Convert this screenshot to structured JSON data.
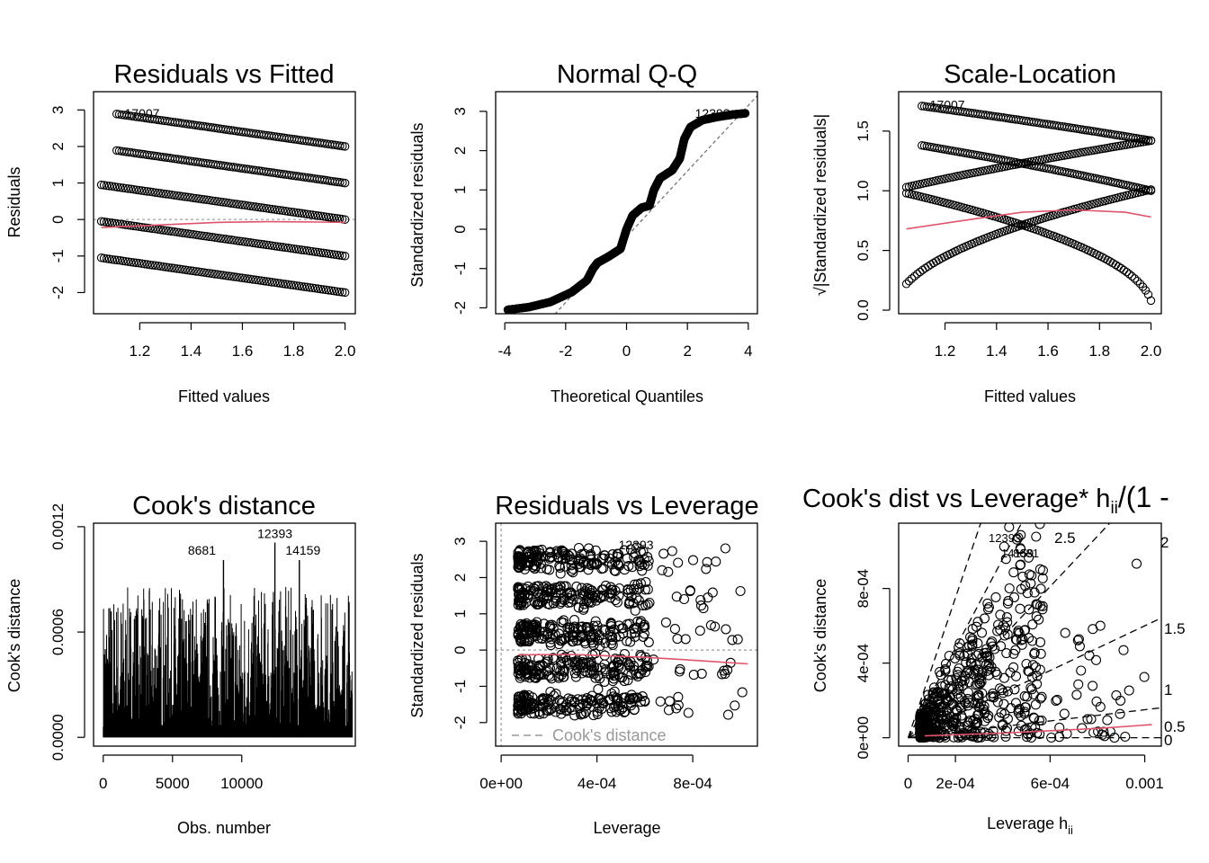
{
  "chart_data": [
    {
      "id": "p1",
      "type": "scatter",
      "title": "Residuals vs Fitted",
      "xlabel": "Fitted values",
      "ylabel": "Residuals",
      "xlim": [
        1.02,
        2.04
      ],
      "ylim": [
        -2.58,
        3.5
      ],
      "xticks": [
        1.2,
        1.4,
        1.6,
        1.8,
        2.0
      ],
      "xtick_labels": [
        "1.2",
        "1.4",
        "1.6",
        "1.8",
        "2.0"
      ],
      "yticks": [
        -2,
        -1,
        0,
        1,
        2,
        3
      ],
      "ytick_labels": [
        "-2",
        "-1",
        "0",
        "1",
        "2",
        "3"
      ],
      "point_bands": [
        {
          "x0": 1.05,
          "y0": -1.05,
          "x1": 2.0,
          "y1": -2.0
        },
        {
          "x0": 1.05,
          "y0": -0.05,
          "x1": 2.0,
          "y1": -1.0
        },
        {
          "x0": 1.05,
          "y0": 0.95,
          "x1": 2.0,
          "y1": 0.0
        },
        {
          "x0": 1.11,
          "y0": 1.89,
          "x1": 2.0,
          "y1": 1.0
        },
        {
          "x0": 1.11,
          "y0": 2.89,
          "x1": 2.0,
          "y1": 2.0
        }
      ],
      "smoother": {
        "x": [
          1.05,
          1.3,
          1.5,
          1.7,
          1.9,
          2.0
        ],
        "y": [
          -0.22,
          -0.14,
          -0.08,
          -0.06,
          -0.07,
          -0.08
        ]
      },
      "labels": [
        {
          "x": 1.19,
          "y": 2.91,
          "text": "17007"
        }
      ]
    },
    {
      "id": "p2",
      "type": "line",
      "title": "Normal Q-Q",
      "xlabel": "Theoretical Quantiles",
      "ylabel": "Standardized residuals",
      "xlim": [
        -4.3,
        4.3
      ],
      "ylim": [
        -2.15,
        3.5
      ],
      "xticks": [
        -4,
        -2,
        0,
        2,
        4
      ],
      "xtick_labels": [
        "-4",
        "-2",
        "0",
        "2",
        "4"
      ],
      "yticks": [
        -2,
        -1,
        0,
        1,
        2,
        3
      ],
      "ytick_labels": [
        "-2",
        "-1",
        "0",
        "1",
        "2",
        "3"
      ],
      "curve": {
        "x": [
          -3.9,
          -3.2,
          -2.5,
          -1.8,
          -1.3,
          -1.1,
          -0.95,
          -0.6,
          -0.2,
          0.0,
          0.2,
          0.5,
          0.75,
          0.9,
          1.1,
          1.5,
          1.75,
          1.9,
          2.1,
          2.5,
          3.0,
          3.5,
          3.9
        ],
        "y": [
          -2.05,
          -1.98,
          -1.85,
          -1.6,
          -1.3,
          -1.0,
          -0.85,
          -0.7,
          -0.5,
          0.0,
          0.35,
          0.55,
          0.6,
          1.0,
          1.3,
          1.5,
          1.8,
          2.3,
          2.6,
          2.78,
          2.86,
          2.92,
          2.95
        ]
      },
      "reference": {
        "x": [
          -2.5,
          4.3
        ],
        "y": [
          -2.28,
          3.4
        ]
      },
      "labels": [
        {
          "x": 2.9,
          "y": 2.95,
          "text": "12393"
        }
      ]
    },
    {
      "id": "p3",
      "type": "scatter",
      "title": "Scale-Location",
      "xlabel": "Fitted values",
      "ylabel": "√|Standardized residuals|",
      "xlim": [
        1.02,
        2.04
      ],
      "ylim": [
        -0.03,
        1.83
      ],
      "xticks": [
        1.2,
        1.4,
        1.6,
        1.8,
        2.0
      ],
      "xtick_labels": [
        "1.2",
        "1.4",
        "1.6",
        "1.8",
        "2.0"
      ],
      "yticks": [
        0.0,
        0.5,
        1.0,
        1.5
      ],
      "ytick_labels": [
        "0.0",
        "0.5",
        "1.0",
        "1.5"
      ],
      "point_curves": [
        {
          "x0": 1.11,
          "y0": 1.71,
          "x1": 2.0,
          "y1": 1.42
        },
        {
          "x0": 1.11,
          "y0": 1.38,
          "x1": 2.0,
          "y1": 1.0
        },
        {
          "x0": 1.05,
          "y0": 1.03,
          "x1": 2.0,
          "y1": 1.42
        },
        {
          "x0": 1.05,
          "y0": 0.98,
          "x1": 2.0,
          "y1": 0.08
        },
        {
          "x0": 1.05,
          "y0": 0.22,
          "x1": 2.0,
          "y1": 1.01
        }
      ],
      "smoother": {
        "x": [
          1.05,
          1.3,
          1.5,
          1.7,
          1.9,
          2.0
        ],
        "y": [
          0.68,
          0.76,
          0.82,
          0.84,
          0.82,
          0.78
        ]
      },
      "labels": [
        {
          "x": 1.19,
          "y": 1.72,
          "text": "17007"
        }
      ]
    },
    {
      "id": "p4",
      "type": "bar",
      "title": "Cook's distance",
      "xlabel": "Obs. number",
      "ylabel": "Cook's distance",
      "xlim": [
        -700,
        18200
      ],
      "ylim": [
        -5e-05,
        0.00122
      ],
      "xticks": [
        0,
        5000,
        10000
      ],
      "xtick_labels": [
        "0",
        "5000",
        "10000"
      ],
      "yticks": [
        0.0,
        0.0006,
        0.0012
      ],
      "ytick_labels": [
        "0.0000",
        "0.0006",
        "0.0012"
      ],
      "n_obs": 18000,
      "peaks": [
        {
          "x": 8681,
          "y": 0.00101,
          "text": "8681"
        },
        {
          "x": 12393,
          "y": 0.00111,
          "text": "12393"
        },
        {
          "x": 14159,
          "y": 0.00101,
          "text": "14159"
        }
      ]
    },
    {
      "id": "p5",
      "type": "scatter",
      "title": "Residuals vs Leverage",
      "xlabel": "Leverage",
      "ylabel": "Standardized residuals",
      "xlim": [
        -2.3e-05,
        0.00107
      ],
      "ylim": [
        -2.65,
        3.5
      ],
      "xticks": [
        0.0,
        0.0004,
        0.0008
      ],
      "xtick_labels": [
        "0e+00",
        "4e-04",
        "8e-04"
      ],
      "yticks": [
        -2,
        -1,
        0,
        1,
        2,
        3
      ],
      "ytick_labels": [
        "-2",
        "-1",
        "0",
        "1",
        "2",
        "3"
      ],
      "band_levels": [
        -1.5,
        -0.5,
        0.5,
        1.5,
        2.5
      ],
      "smoother": {
        "x": [
          7e-05,
          0.0003,
          0.0006,
          0.0008,
          0.00103
        ],
        "y": [
          -0.13,
          -0.12,
          -0.2,
          -0.28,
          -0.38
        ]
      },
      "labels": [
        {
          "x": 0.00043,
          "y": 2.9,
          "text": "12393"
        }
      ],
      "legend": "Cook's distance"
    },
    {
      "id": "p6",
      "type": "scatter",
      "title": "Cook's dist vs Leverage* h",
      "title_sub": "ii",
      "title_tail": "/(1 -",
      "xlabel": "Leverage  h",
      "xlabel_sub": "ii",
      "ylabel": "Cook's distance",
      "xlim": [
        -4e-05,
        0.00107
      ],
      "ylim": [
        -4.5e-05,
        0.00115
      ],
      "xticks": [
        0.0,
        0.0002,
        0.0006,
        0.001
      ],
      "xtick_labels": [
        "0",
        "2e-04",
        "6e-04",
        "0.001"
      ],
      "yticks": [
        0.0,
        0.0004,
        0.0008
      ],
      "ytick_labels": [
        "0e+00",
        "4e-04",
        "8e-04"
      ],
      "contours": [
        {
          "slope": 3.75,
          "text": "2.5"
        },
        {
          "slope": 2.4,
          "text": "2"
        },
        {
          "slope": 1.35,
          "text": "1.5"
        },
        {
          "slope": 0.6,
          "text": "1"
        },
        {
          "slope": 0.15,
          "text": "0.5"
        },
        {
          "slope": 0.0,
          "text": "0"
        }
      ],
      "smoother": {
        "x": [
          7e-05,
          0.0004,
          0.0008,
          0.00103
        ],
        "y": [
          1e-05,
          2.5e-05,
          5e-05,
          7e-05
        ]
      },
      "labels": [
        {
          "x": 0.00043,
          "y": 0.00109,
          "text": "12393"
        },
        {
          "x": 0.00043,
          "y": 0.00101,
          "text": "14159"
        },
        {
          "x": 0.00046,
          "y": 0.00101,
          "text": "8681"
        }
      ]
    }
  ]
}
